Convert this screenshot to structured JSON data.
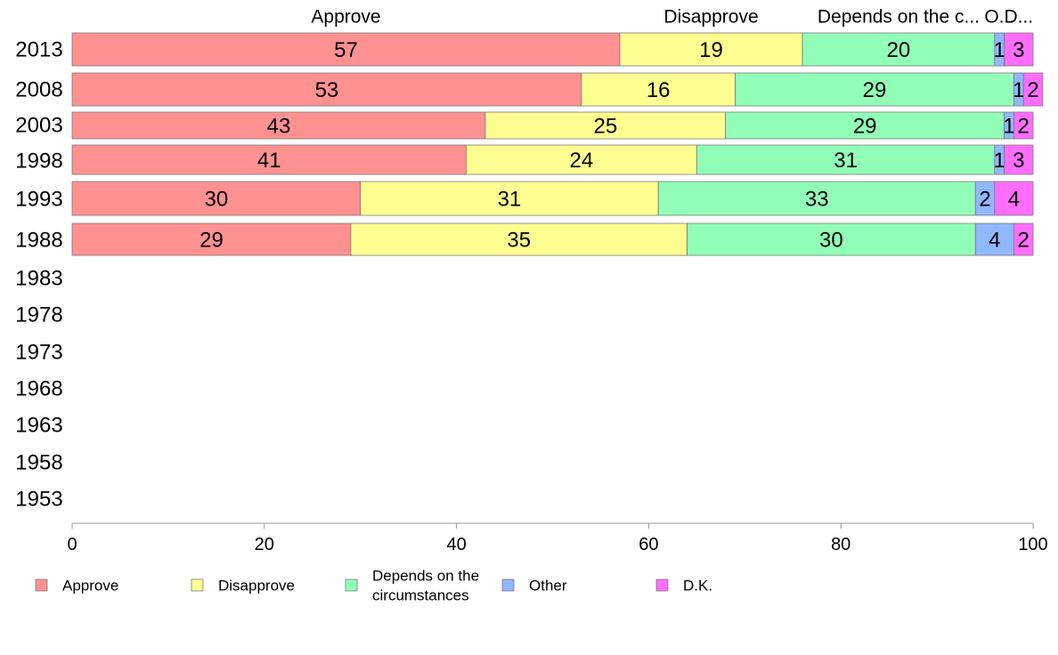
{
  "chart_data": {
    "type": "bar",
    "orientation": "horizontal",
    "stacked": true,
    "categories": [
      "2013",
      "2008",
      "2003",
      "1998",
      "1993",
      "1988",
      "1983",
      "1978",
      "1973",
      "1968",
      "1963",
      "1958",
      "1953"
    ],
    "series": [
      {
        "name": "Approve",
        "color": "#ff9191",
        "values": [
          57,
          53,
          43,
          41,
          30,
          29,
          null,
          null,
          null,
          null,
          null,
          null,
          null
        ]
      },
      {
        "name": "Disapprove",
        "color": "#ffff91",
        "values": [
          19,
          16,
          25,
          24,
          31,
          35,
          null,
          null,
          null,
          null,
          null,
          null,
          null
        ]
      },
      {
        "name": "Depends on the circumstances",
        "color": "#91ffb7",
        "values": [
          20,
          29,
          29,
          31,
          33,
          30,
          null,
          null,
          null,
          null,
          null,
          null,
          null
        ]
      },
      {
        "name": "Other",
        "color": "#91b7ff",
        "values": [
          1,
          1,
          1,
          1,
          2,
          4,
          null,
          null,
          null,
          null,
          null,
          null,
          null
        ]
      },
      {
        "name": "D.K.",
        "color": "#ff6dff",
        "values": [
          3,
          2,
          2,
          3,
          4,
          2,
          null,
          null,
          null,
          null,
          null,
          null,
          null
        ]
      }
    ],
    "column_headers": [
      "Approve",
      "Disapprove",
      "Depends on the c...",
      "O...",
      "D..."
    ],
    "legend_labels": [
      [
        "Approve"
      ],
      [
        "Disapprove"
      ],
      [
        "Depends on the",
        "circumstances"
      ],
      [
        "Other"
      ],
      [
        "D.K."
      ]
    ],
    "xlim": [
      0,
      100
    ],
    "xticks": [
      0,
      20,
      40,
      60,
      80,
      100
    ],
    "legend_position": "bottom",
    "grid": false
  }
}
